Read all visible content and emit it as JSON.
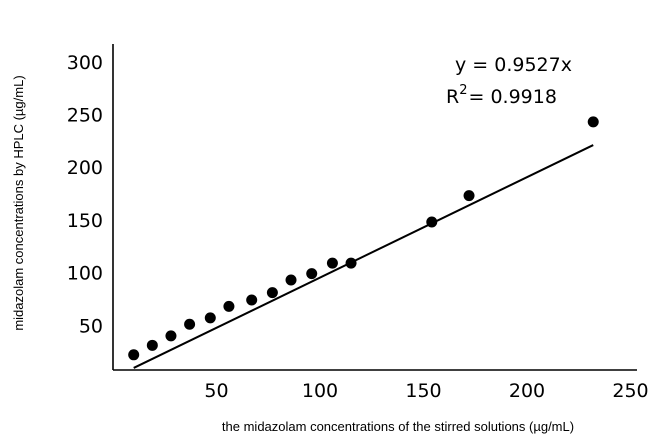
{
  "chart_data": {
    "type": "scatter",
    "title": "",
    "xlabel": "the midazolam concentrations of the stirred solutions (µg/mL)",
    "ylabel": "midazolam concentrations by HPLC (µg/mL)",
    "xlim": [
      0,
      250
    ],
    "ylim": [
      0,
      300
    ],
    "x_ticks": [
      "50",
      "100",
      "150",
      "200",
      "250"
    ],
    "y_ticks": [
      "50",
      "100",
      "150",
      "200",
      "250",
      "300"
    ],
    "grid": false,
    "points": [
      {
        "x": 10,
        "y": 22
      },
      {
        "x": 19,
        "y": 31
      },
      {
        "x": 28,
        "y": 40
      },
      {
        "x": 37,
        "y": 51
      },
      {
        "x": 47,
        "y": 57
      },
      {
        "x": 56,
        "y": 68
      },
      {
        "x": 67,
        "y": 74
      },
      {
        "x": 77,
        "y": 81
      },
      {
        "x": 86,
        "y": 93
      },
      {
        "x": 96,
        "y": 99
      },
      {
        "x": 106,
        "y": 109
      },
      {
        "x": 115,
        "y": 109
      },
      {
        "x": 154,
        "y": 148
      },
      {
        "x": 172,
        "y": 173
      },
      {
        "x": 232,
        "y": 243
      }
    ],
    "trendline": {
      "slope": 0.9527,
      "x_range": [
        10,
        232
      ],
      "equation_main": "y = 0.9527x",
      "r2_prefix": "R",
      "r2_sup": "2",
      "r2_value": "= 0.9918"
    }
  }
}
